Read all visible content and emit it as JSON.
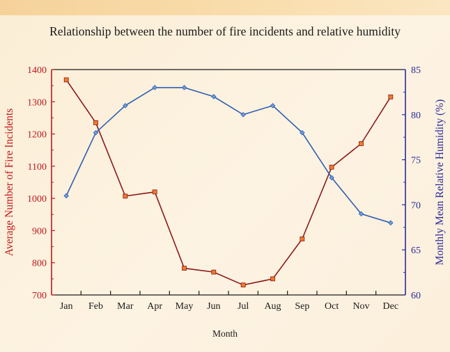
{
  "chart_data": {
    "type": "line",
    "title": "Relationship between the number of fire incidents and relative humidity",
    "xlabel": "Month",
    "ylabel_left": "Average Number of Fire Incidents",
    "ylabel_right": "Monthly Mean Relative Humidity (%)",
    "categories": [
      "Jan",
      "Feb",
      "Mar",
      "Apr",
      "May",
      "Jun",
      "Jul",
      "Aug",
      "Sep",
      "Oct",
      "Nov",
      "Dec"
    ],
    "ylim_left": [
      700,
      1400
    ],
    "ylim_right": [
      60,
      85
    ],
    "yticks_left": [
      "700",
      "800",
      "900",
      "1000",
      "1100",
      "1200",
      "1300",
      "1400"
    ],
    "yticks_right": [
      "60",
      "65",
      "70",
      "75",
      "80",
      "85"
    ],
    "series": [
      {
        "axis": "left",
        "color": "#8b1a1a",
        "marker_color": "#f07a2a",
        "marker": "square",
        "values": [
          1368,
          1235,
          1007,
          1020,
          783,
          771,
          731,
          750,
          874,
          1097,
          1170,
          1315
        ]
      },
      {
        "axis": "right",
        "color": "#2f5fb0",
        "marker_color": "#6e9de0",
        "marker": "diamond",
        "values": [
          71,
          78,
          81,
          83,
          83,
          82,
          80,
          81,
          78,
          73,
          69,
          68
        ]
      }
    ],
    "grid": false
  },
  "colors": {
    "left_axis": "#c0181c",
    "right_axis": "#2b2a9a",
    "frame": "#1a1a1a"
  }
}
